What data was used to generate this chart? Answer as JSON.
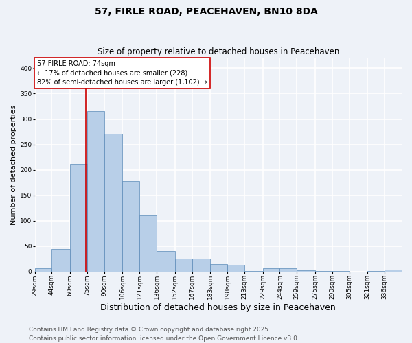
{
  "title": "57, FIRLE ROAD, PEACEHAVEN, BN10 8DA",
  "subtitle": "Size of property relative to detached houses in Peacehaven",
  "xlabel": "Distribution of detached houses by size in Peacehaven",
  "ylabel": "Number of detached properties",
  "bins": [
    "29sqm",
    "44sqm",
    "60sqm",
    "75sqm",
    "90sqm",
    "106sqm",
    "121sqm",
    "136sqm",
    "152sqm",
    "167sqm",
    "183sqm",
    "198sqm",
    "213sqm",
    "229sqm",
    "244sqm",
    "259sqm",
    "275sqm",
    "290sqm",
    "305sqm",
    "321sqm",
    "336sqm"
  ],
  "bin_edges": [
    29,
    44,
    60,
    75,
    90,
    106,
    121,
    136,
    152,
    167,
    183,
    198,
    213,
    229,
    244,
    259,
    275,
    290,
    305,
    321,
    336,
    351
  ],
  "counts": [
    6,
    44,
    211,
    315,
    271,
    178,
    110,
    40,
    25,
    25,
    15,
    14,
    1,
    6,
    6,
    3,
    1,
    1,
    0,
    1,
    4
  ],
  "bar_color": "#b8cfe8",
  "bar_edge_color": "#5a8ab8",
  "vline_x": 74,
  "vline_color": "#cc0000",
  "annotation_text": "57 FIRLE ROAD: 74sqm\n← 17% of detached houses are smaller (228)\n82% of semi-detached houses are larger (1,102) →",
  "annotation_box_color": "#ffffff",
  "annotation_box_edge": "#cc0000",
  "ylim": [
    0,
    420
  ],
  "yticks": [
    0,
    50,
    100,
    150,
    200,
    250,
    300,
    350,
    400
  ],
  "footer": "Contains HM Land Registry data © Crown copyright and database right 2025.\nContains public sector information licensed under the Open Government Licence v3.0.",
  "background_color": "#eef2f8",
  "plot_background": "#eef2f8",
  "grid_color": "#ffffff",
  "title_fontsize": 10,
  "subtitle_fontsize": 8.5,
  "xlabel_fontsize": 9,
  "ylabel_fontsize": 8,
  "tick_fontsize": 6.5,
  "annotation_fontsize": 7,
  "footer_fontsize": 6.5
}
